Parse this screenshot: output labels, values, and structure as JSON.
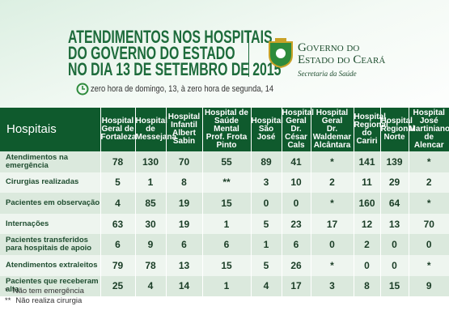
{
  "header": {
    "title": [
      "ATENDIMENTOS NOS HOSPITAIS",
      "DO GOVERNO DO ESTADO",
      "NO DIA 13 DE SETEMBRO DE 2015"
    ],
    "subtitle": "zero hora de domingo, 13, à zero hora de segunda, 14",
    "logo": {
      "line1": "Governo do",
      "line2": "Estado do Ceará",
      "line3": "Secretaria da Saúde"
    }
  },
  "table": {
    "columns": [
      [
        "Hospitais"
      ],
      [
        "Hospital",
        "Geral de",
        "Fortaleza"
      ],
      [
        "Hospital de",
        "Messejana"
      ],
      [
        "Hospital",
        "Infantil",
        "Albert Sabin"
      ],
      [
        "Hospital de",
        "Saúde Mental",
        "Prof. Frota Pinto"
      ],
      [
        "Hospital",
        "São José"
      ],
      [
        "Hospital",
        "Geral Dr.",
        "César Cals"
      ],
      [
        "Hospital Geral",
        "Dr. Waldemar",
        "Alcântara"
      ],
      [
        "Hospital",
        "Regional",
        "do Cariri"
      ],
      [
        "Hospital",
        "Regional",
        "Norte"
      ],
      [
        "Hospital José",
        "Martiniano",
        "de Alencar"
      ]
    ],
    "rows": [
      [
        "Atendimentos na emergência",
        78,
        130,
        70,
        55,
        89,
        41,
        "*",
        141,
        139,
        "*"
      ],
      [
        "Cirurgias realizadas",
        5,
        1,
        8,
        "**",
        3,
        10,
        2,
        11,
        29,
        2
      ],
      [
        "Pacientes em observação",
        4,
        85,
        19,
        15,
        0,
        0,
        "*",
        160,
        64,
        "*"
      ],
      [
        "Internações",
        63,
        30,
        19,
        1,
        5,
        23,
        17,
        12,
        13,
        70
      ],
      [
        "Pacientes transferidos para hospitais de apoio",
        6,
        9,
        6,
        6,
        1,
        6,
        0,
        2,
        0,
        0
      ],
      [
        "Atendimentos extraleitos",
        79,
        78,
        13,
        15,
        5,
        26,
        "*",
        0,
        0,
        "*"
      ],
      [
        "Pacientes que receberam alta",
        25,
        4,
        14,
        1,
        4,
        17,
        3,
        8,
        15,
        9
      ]
    ]
  },
  "footnotes": [
    [
      "*",
      "Não tem emergência"
    ],
    [
      "**",
      "Não realiza cirurgia"
    ]
  ]
}
